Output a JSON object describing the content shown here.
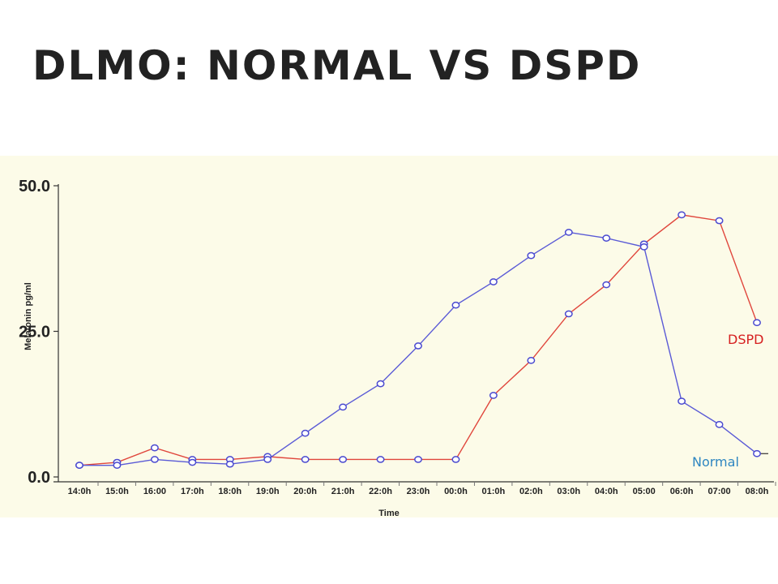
{
  "slide": {
    "title": "DLMO: NORMAL VS DSPD"
  },
  "colors": {
    "panel_background": "#fcfbe8",
    "dspd": "#e0463c",
    "normal": "#5a5ad6",
    "marker_stroke": "#4b4bd0",
    "normal_label": "#2e86c1",
    "dspd_label": "#d62020"
  },
  "chart_data": {
    "type": "line",
    "title": "",
    "xlabel": "Time",
    "ylabel": "Melatonin pg/ml",
    "ylim": [
      0,
      50
    ],
    "yticks": [
      "0.0",
      "25.0",
      "50.0"
    ],
    "yticks_values": [
      0,
      25,
      50
    ],
    "categories": [
      "14:0h",
      "15:0h",
      "16:00",
      "17:0h",
      "18:0h",
      "19:0h",
      "20:0h",
      "21:0h",
      "22:0h",
      "23:0h",
      "00:0h",
      "01:0h",
      "02:0h",
      "03:0h",
      "04:0h",
      "05:00",
      "06:0h",
      "07:00",
      "08:0h"
    ],
    "series": [
      {
        "name": "DSPD",
        "color": "#e0463c",
        "values": [
          2,
          2.5,
          5,
          3,
          3,
          3.5,
          3,
          3,
          3,
          3,
          3,
          14,
          20,
          28,
          33,
          40,
          45,
          44,
          26.5
        ]
      },
      {
        "name": "Normal",
        "color": "#5a5ad6",
        "values": [
          2,
          2,
          3,
          2.5,
          2.2,
          3,
          7.5,
          12,
          16,
          22.5,
          29.5,
          33.5,
          38,
          42,
          41,
          39.5,
          13,
          9,
          4
        ]
      }
    ],
    "grid": false,
    "legend": "inline labels at right end of series"
  }
}
